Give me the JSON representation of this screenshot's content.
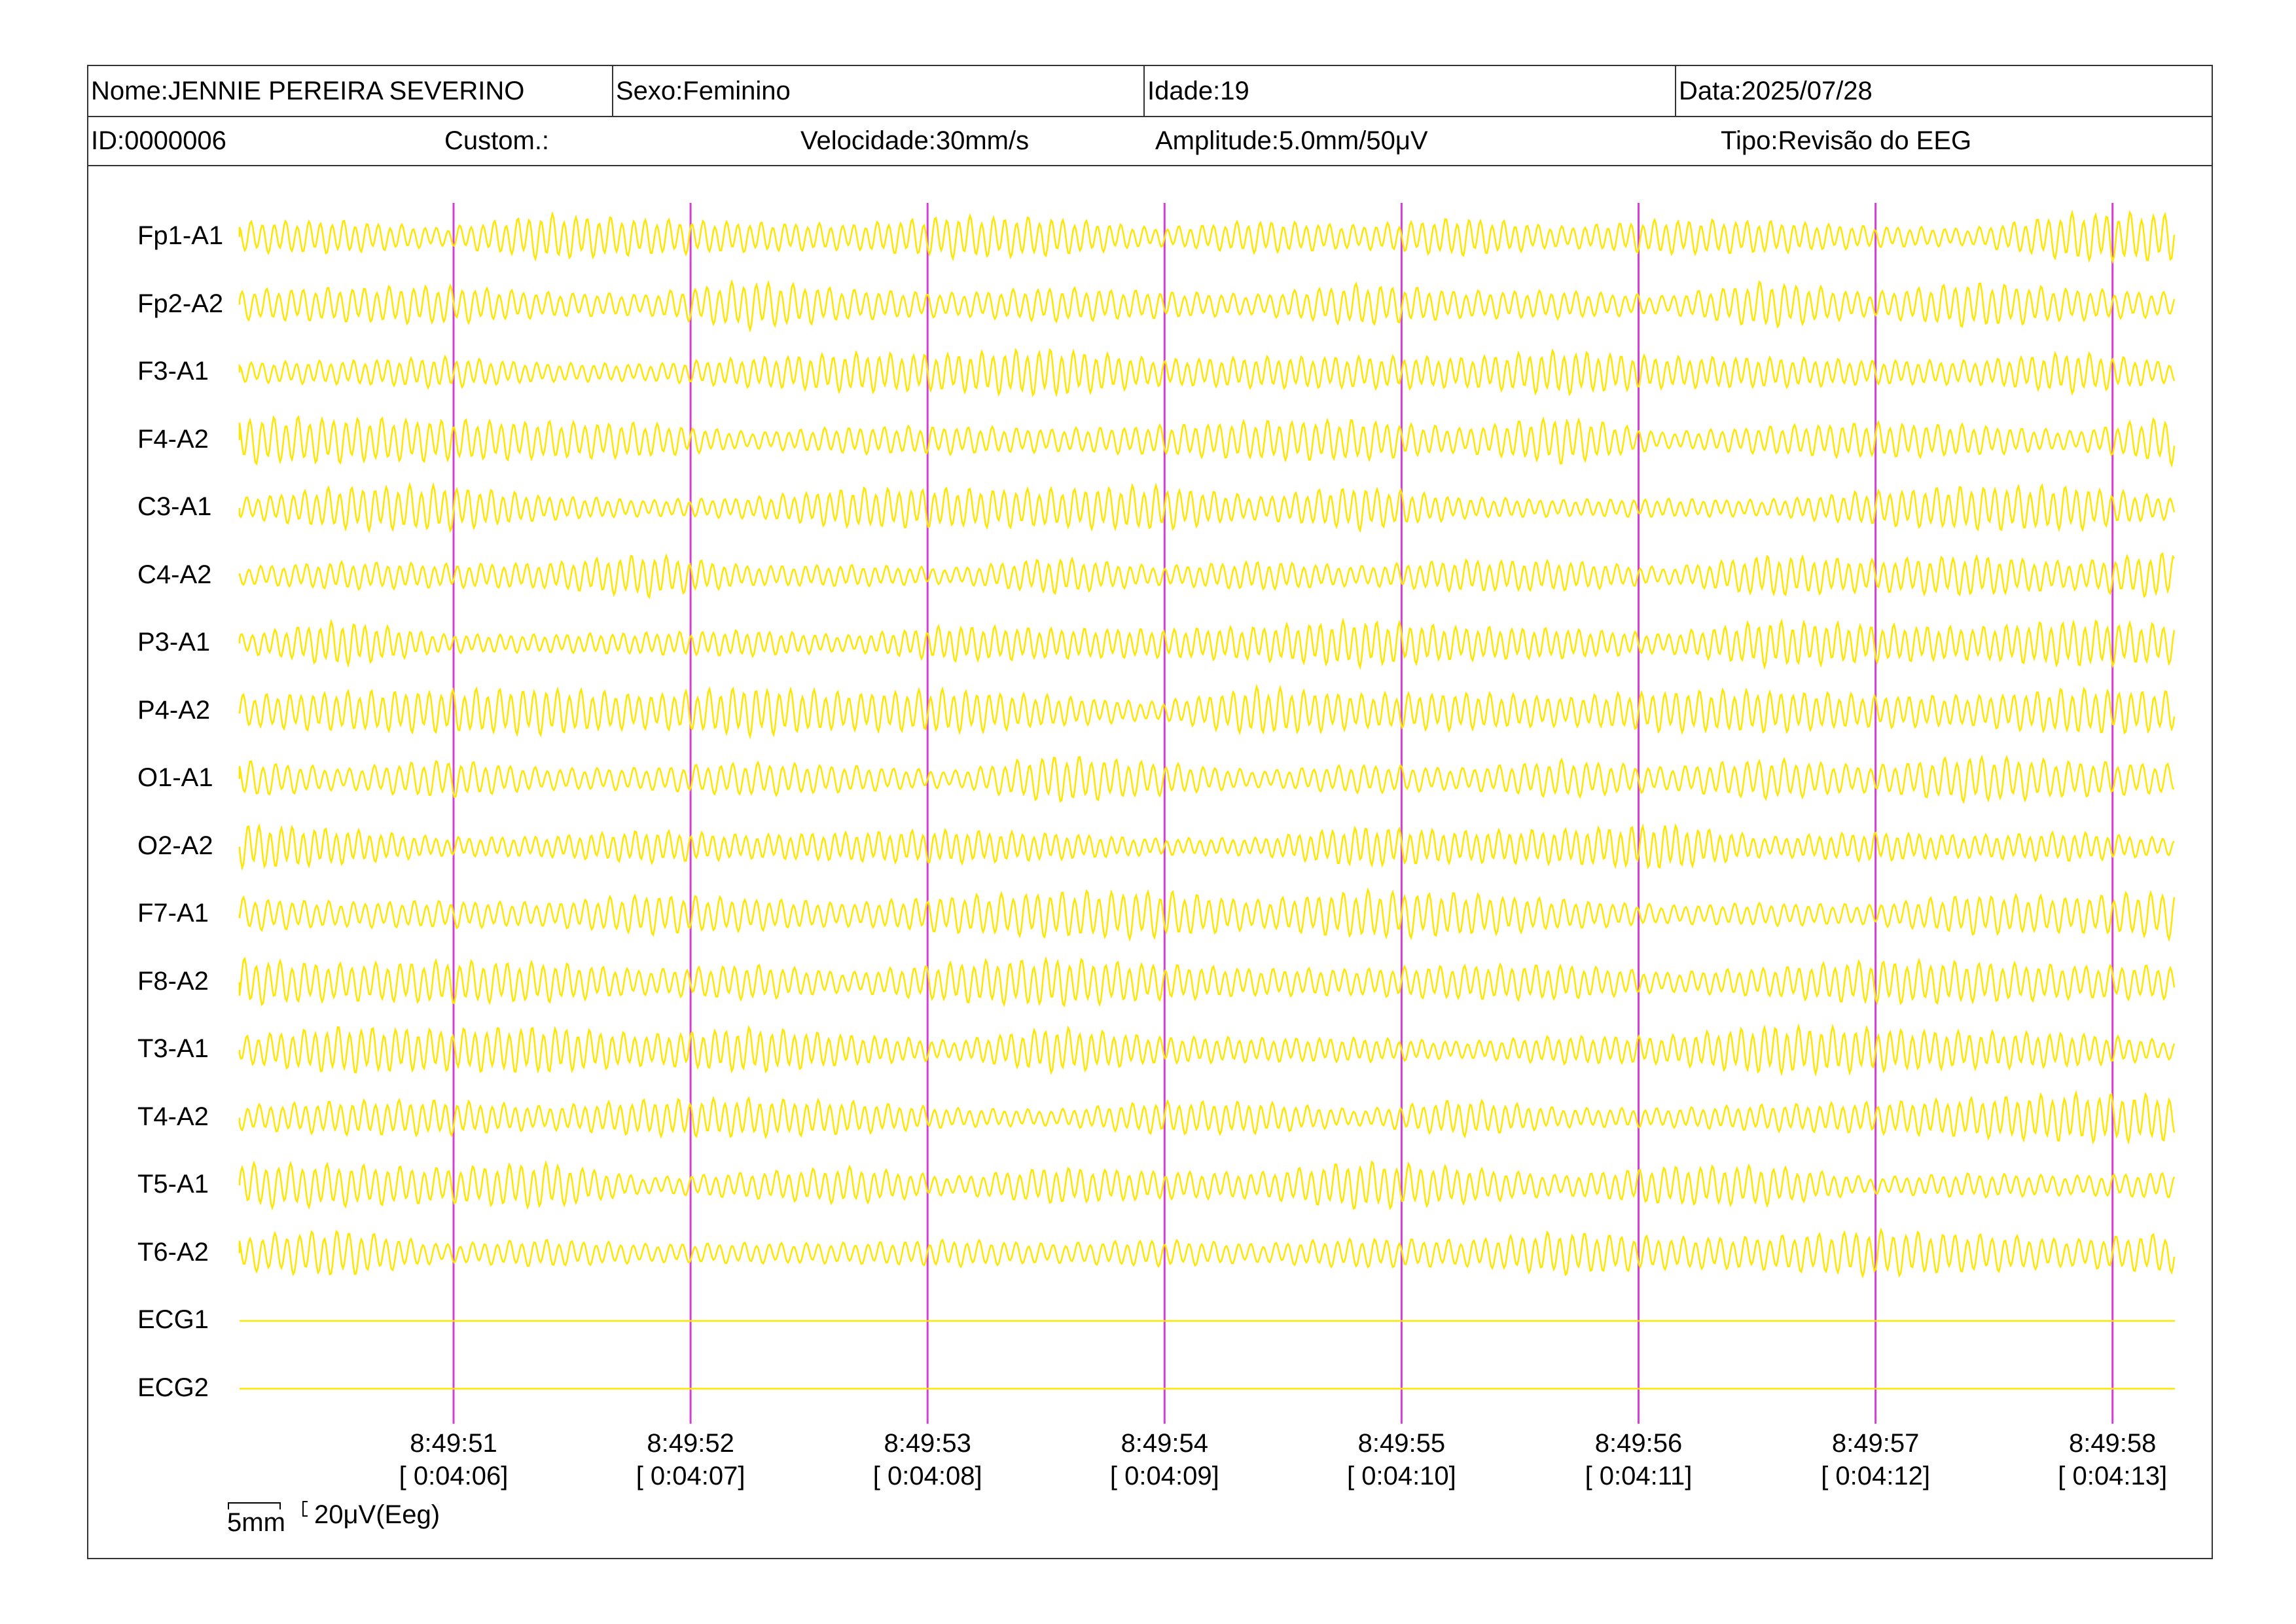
{
  "header": {
    "nome": "Nome:JENNIE PEREIRA SEVERINO",
    "sexo": "Sexo:Feminino",
    "idade": "Idade:19",
    "data": "Data:2025/07/28",
    "id": "ID:0000006",
    "custom": "Custom.:",
    "velocidade": "Velocidade:30mm/s",
    "amplitude": "Amplitude:5.0mm/50μV",
    "tipo": "Tipo:Revisão do EEG"
  },
  "channels": [
    "Fp1-A1",
    "Fp2-A2",
    "F3-A1",
    "F4-A2",
    "C3-A1",
    "C4-A2",
    "P3-A1",
    "P4-A2",
    "O1-A1",
    "O2-A2",
    "F7-A1",
    "F8-A2",
    "T3-A1",
    "T4-A2",
    "T5-A1",
    "T6-A2",
    "ECG1",
    "ECG2"
  ],
  "time_marks": [
    {
      "clock": "8:49:51",
      "elapsed": "[ 0:04:06]"
    },
    {
      "clock": "8:49:52",
      "elapsed": "[ 0:04:07]"
    },
    {
      "clock": "8:49:53",
      "elapsed": "[ 0:04:08]"
    },
    {
      "clock": "8:49:54",
      "elapsed": "[ 0:04:09]"
    },
    {
      "clock": "8:49:55",
      "elapsed": "[ 0:04:10]"
    },
    {
      "clock": "8:49:56",
      "elapsed": "[ 0:04:11]"
    },
    {
      "clock": "8:49:57",
      "elapsed": "[ 0:04:12]"
    },
    {
      "clock": "8:49:58",
      "elapsed": "[ 0:04:13]"
    }
  ],
  "scale": {
    "time": "5mm",
    "amplitude": "20μV(Eeg)"
  },
  "colors": {
    "trace": "#FFE600",
    "marker": "#D63FD6",
    "border": "#333333"
  }
}
